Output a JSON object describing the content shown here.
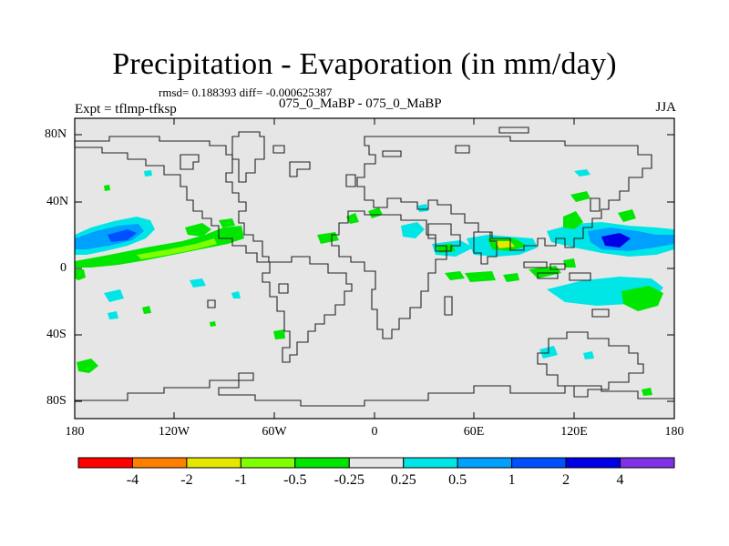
{
  "title": "Precipitation - Evaporation (in mm/day)",
  "stats": "rmsd= 0.188393 diff= -0.000625387",
  "experiment": "Expt = tflmp-tfksp",
  "case_label": "075_0_MaBP - 075_0_MaBP",
  "season": "JJA",
  "lat_labels": [
    "80N",
    "40N",
    "0",
    "40S",
    "80S"
  ],
  "lon_labels": [
    "180",
    "120W",
    "60W",
    "0",
    "60E",
    "120E",
    "180"
  ],
  "colorbar": {
    "colors": [
      "#ff0000",
      "#ff8000",
      "#e6e600",
      "#80ff00",
      "#00e600",
      "#e6e6e6",
      "#00e6e6",
      "#00a0ff",
      "#0050ff",
      "#0000e6",
      "#8030e6"
    ],
    "labels": [
      "-4",
      "-2",
      "-1",
      "-0.5",
      "-0.25",
      "0.25",
      "0.5",
      "1",
      "2",
      "4"
    ]
  },
  "colors": {
    "background_land_ocean": "#e6e6e6",
    "coast": "#222222"
  }
}
